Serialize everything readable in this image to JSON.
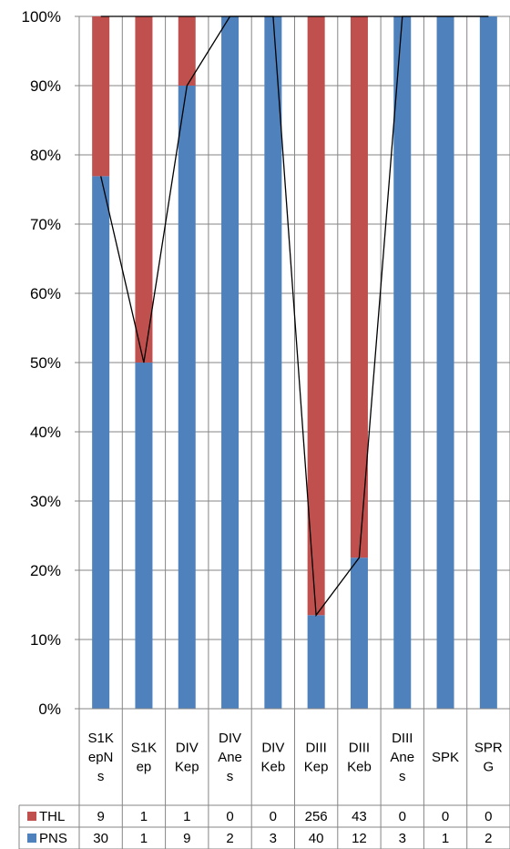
{
  "chart_data": {
    "type": "bar",
    "stacked": "percent",
    "categories": [
      [
        "S1K",
        "epN",
        "s"
      ],
      [
        "S1K",
        "ep"
      ],
      [
        "DIV",
        "Kep"
      ],
      [
        "DIV",
        "Ane",
        "s"
      ],
      [
        "DIV",
        "Keb"
      ],
      [
        "DIII",
        "Kep"
      ],
      [
        "DIII",
        "Keb"
      ],
      [
        "DIII",
        "Ane",
        "s"
      ],
      [
        "SPK"
      ],
      [
        "SPR",
        "G"
      ]
    ],
    "series": [
      {
        "name": "PNS",
        "color": "#4F81BD",
        "values": [
          30,
          1,
          9,
          2,
          3,
          40,
          12,
          3,
          1,
          2
        ]
      },
      {
        "name": "THL",
        "color": "#C0504D",
        "values": [
          9,
          1,
          1,
          0,
          0,
          256,
          43,
          0,
          0,
          0
        ]
      }
    ],
    "table_order": [
      "THL",
      "PNS"
    ],
    "y_ticks": [
      "0%",
      "10%",
      "20%",
      "30%",
      "40%",
      "50%",
      "60%",
      "70%",
      "80%",
      "90%",
      "100%"
    ],
    "ylim": [
      0,
      100
    ],
    "series_lines": true,
    "grid": true,
    "legend": "data-table"
  }
}
